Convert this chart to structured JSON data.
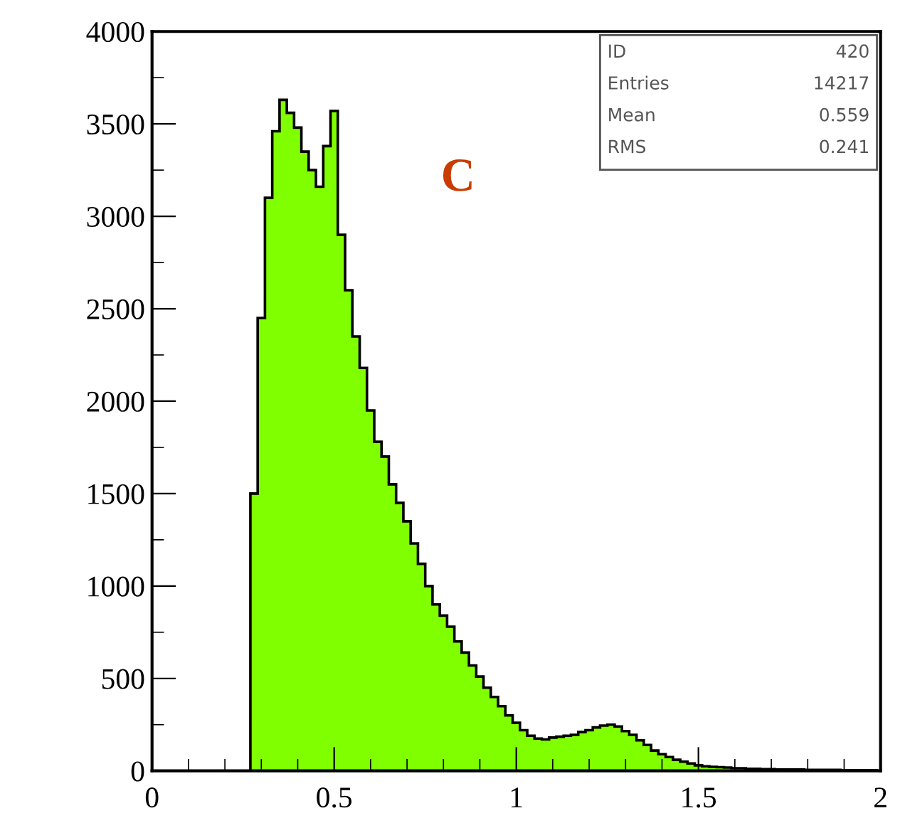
{
  "chart_data": {
    "type": "histogram",
    "bins": [
      0.27,
      0.29,
      0.31,
      0.33,
      0.35,
      0.37,
      0.39,
      0.41,
      0.43,
      0.45,
      0.47,
      0.49,
      0.51,
      0.53,
      0.55,
      0.57,
      0.59,
      0.61,
      0.63,
      0.65,
      0.67,
      0.69,
      0.71,
      0.73,
      0.75,
      0.77,
      0.79,
      0.81,
      0.83,
      0.85,
      0.87,
      0.89,
      0.91,
      0.93,
      0.95,
      0.97,
      0.99,
      1.01,
      1.03,
      1.05,
      1.07,
      1.09,
      1.11,
      1.13,
      1.15,
      1.17,
      1.19,
      1.21,
      1.23,
      1.25,
      1.27,
      1.29,
      1.31,
      1.33,
      1.35,
      1.37,
      1.39,
      1.41,
      1.43,
      1.45,
      1.47,
      1.49,
      1.51,
      1.53,
      1.55,
      1.57,
      1.59,
      1.61,
      1.63,
      1.65,
      1.67,
      1.69,
      1.71,
      1.73,
      1.75,
      1.77,
      1.79,
      1.81,
      1.83,
      1.85,
      1.87,
      1.89,
      1.91,
      1.93,
      1.95,
      1.97,
      1.99
    ],
    "values": [
      1500,
      2450,
      3100,
      3460,
      3630,
      3560,
      3480,
      3350,
      3250,
      3160,
      3380,
      3570,
      2900,
      2600,
      2350,
      2180,
      1950,
      1780,
      1700,
      1550,
      1450,
      1350,
      1230,
      1120,
      1000,
      900,
      840,
      780,
      700,
      640,
      570,
      510,
      450,
      400,
      350,
      300,
      260,
      220,
      190,
      175,
      170,
      180,
      185,
      190,
      195,
      210,
      220,
      235,
      245,
      250,
      240,
      215,
      195,
      165,
      140,
      110,
      90,
      75,
      60,
      50,
      40,
      30,
      25,
      22,
      20,
      18,
      15,
      14,
      12,
      11,
      10,
      9,
      8,
      8,
      7,
      7,
      6,
      6,
      5,
      5,
      5,
      4,
      4,
      4,
      3,
      3
    ],
    "color": "#80ff00",
    "xlim": [
      0,
      2
    ],
    "ylim": [
      0,
      4000
    ],
    "xticks": [
      0,
      0.5,
      1,
      1.5,
      2
    ],
    "yticks": [
      0,
      500,
      1000,
      1500,
      2000,
      2500,
      3000,
      3500,
      4000
    ],
    "annotations": [
      "C",
      "ID",
      "420",
      "Entries",
      "14217",
      "Mean",
      "0.559",
      "RMS",
      "0.241"
    ],
    "grid": false
  }
}
